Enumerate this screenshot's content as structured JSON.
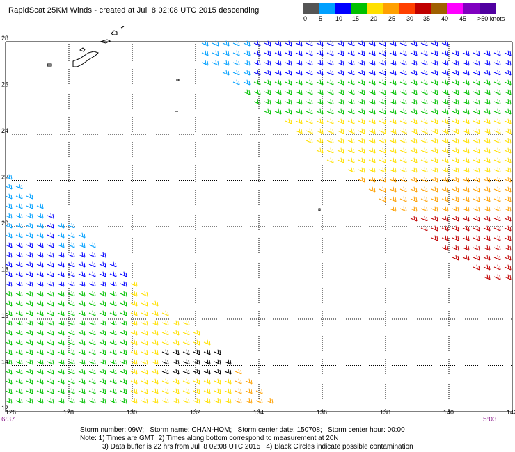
{
  "header": {
    "title": "RapidScat 25KM Winds - created at Jul  8 02:08 UTC 2015 descending"
  },
  "legend": {
    "colors": [
      "#555555",
      "#00a0ff",
      "#0000ff",
      "#00c000",
      "#ffe000",
      "#ffa000",
      "#ff4000",
      "#c00000",
      "#a06000",
      "#ff00ff",
      "#8000c0",
      "#5000a0"
    ],
    "labels": [
      "0",
      "5",
      "10",
      "15",
      "20",
      "25",
      "30",
      "35",
      "40",
      "45",
      ">50 knots"
    ]
  },
  "axes": {
    "lat_labels": [
      "28",
      "26",
      "24",
      "22",
      "20",
      "18",
      "16",
      "14",
      "12"
    ],
    "lon_labels": [
      "126",
      "128",
      "130",
      "132",
      "134",
      "136",
      "138",
      "140",
      "142"
    ]
  },
  "times": {
    "left": "6:37",
    "right": "5:03"
  },
  "footer": {
    "storm_line": "Storm number: 09W;   Storm name: CHAN-HOM;   Storm center date: 150708;   Storm center hour: 00:00",
    "note_line1": "Note: 1) Times are GMT  2) Times along bottom correspond to measurement at 20N",
    "note_line2": "3) Data buffer is 22 hrs from Jul  8 02:08 UTC 2015   4) Black Circles indicate possible contamination"
  }
}
